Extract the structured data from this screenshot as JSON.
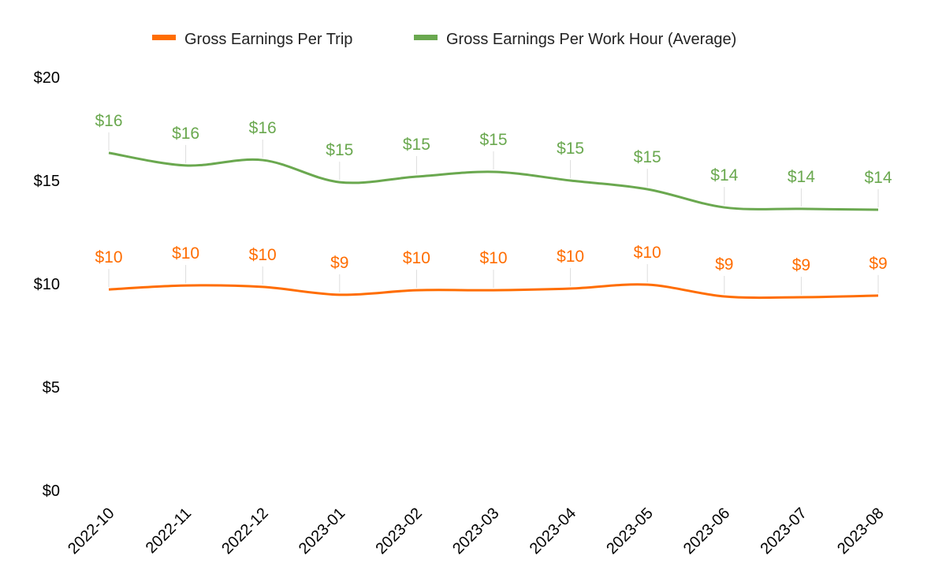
{
  "chart_data": {
    "type": "line",
    "title": "",
    "xlabel": "",
    "ylabel": "",
    "ylim": [
      0,
      20
    ],
    "y_ticks": [
      "$0",
      "$5",
      "$10",
      "$15",
      "$20"
    ],
    "y_tick_values": [
      0,
      5,
      10,
      15,
      20
    ],
    "legend_position": "top",
    "grid": false,
    "categories": [
      "2022-10",
      "2022-11",
      "2022-12",
      "2023-01",
      "2023-02",
      "2023-03",
      "2023-04",
      "2023-05",
      "2023-06",
      "2023-07",
      "2023-08"
    ],
    "series": [
      {
        "name": "Gross Earnings Per Trip",
        "color": "#ff6d01",
        "values": [
          9.73,
          9.92,
          9.85,
          9.47,
          9.69,
          9.69,
          9.77,
          9.96,
          9.39,
          9.35,
          9.43
        ],
        "labels": [
          "$10",
          "$10",
          "$10",
          "$9",
          "$10",
          "$10",
          "$10",
          "$10",
          "$9",
          "$9",
          "$9"
        ]
      },
      {
        "name": "Gross Earnings Per Work Hour (Average)",
        "color": "#6aa84f",
        "values": [
          16.34,
          15.73,
          15.99,
          14.92,
          15.19,
          15.42,
          15.0,
          14.58,
          13.7,
          13.63,
          13.59
        ],
        "labels": [
          "$16",
          "$16",
          "$16",
          "$15",
          "$15",
          "$15",
          "$15",
          "$15",
          "$14",
          "$14",
          "$14"
        ]
      }
    ]
  }
}
